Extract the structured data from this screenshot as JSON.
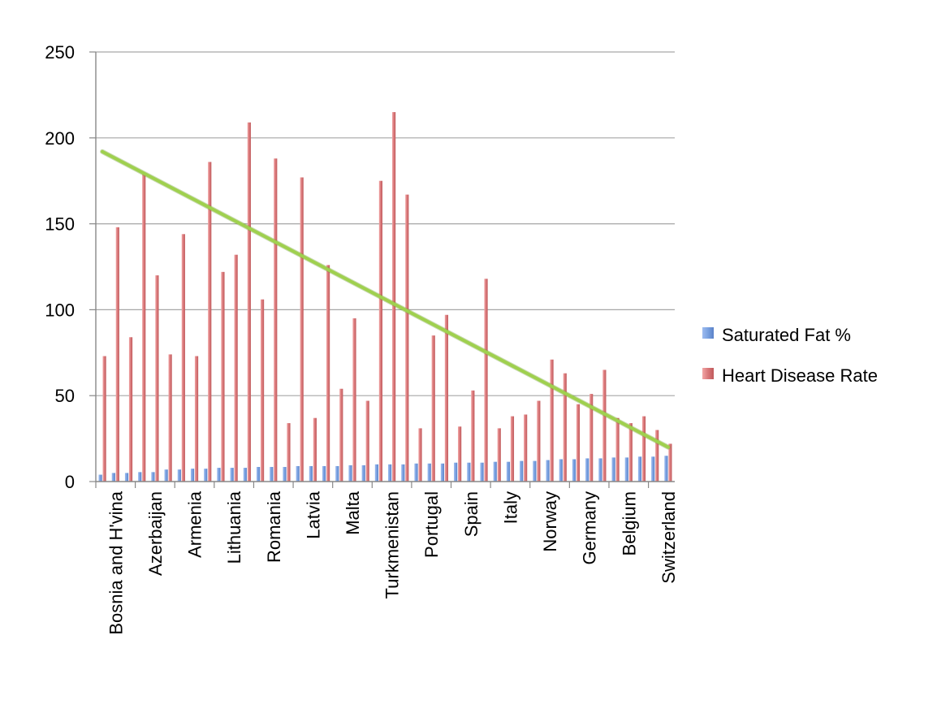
{
  "chart_data": {
    "type": "bar",
    "title": "",
    "xlabel": "",
    "ylabel": "",
    "ylim": [
      0,
      250
    ],
    "yticks": [
      "0",
      "50",
      "100",
      "150",
      "200",
      "250"
    ],
    "grid": true,
    "legend_position": "right",
    "category_count": 44,
    "labeled_categories": [
      {
        "index": 1,
        "label": "Bosnia and H'vina"
      },
      {
        "index": 4,
        "label": "Azerbaijan"
      },
      {
        "index": 7,
        "label": "Armenia"
      },
      {
        "index": 10,
        "label": "Lithuania"
      },
      {
        "index": 13,
        "label": "Romania"
      },
      {
        "index": 16,
        "label": "Latvia"
      },
      {
        "index": 19,
        "label": "Malta"
      },
      {
        "index": 22,
        "label": "Turkmenistan"
      },
      {
        "index": 25,
        "label": "Portugal"
      },
      {
        "index": 28,
        "label": "Spain"
      },
      {
        "index": 31,
        "label": "Italy"
      },
      {
        "index": 34,
        "label": "Norway"
      },
      {
        "index": 37,
        "label": "Germany"
      },
      {
        "index": 40,
        "label": "Belgium"
      },
      {
        "index": 43,
        "label": "Switzerland"
      }
    ],
    "series": [
      {
        "name": "Saturated Fat %",
        "color": "#7aa1e0",
        "values": [
          4,
          5,
          5,
          5.5,
          5.5,
          7,
          7,
          7.5,
          7.5,
          8,
          8,
          8,
          8.5,
          8.5,
          8.5,
          9,
          9,
          9,
          9,
          9.5,
          9.5,
          10,
          10,
          10,
          10.5,
          10.5,
          10.5,
          11,
          11,
          11,
          11.5,
          11.5,
          12,
          12,
          12.5,
          13,
          13,
          13.5,
          13.5,
          14,
          14,
          14.5,
          14.5,
          15
        ]
      },
      {
        "name": "Heart Disease Rate",
        "color": "#d9787a",
        "values": [
          73,
          148,
          84,
          179,
          120,
          74,
          144,
          73,
          186,
          122,
          132,
          209,
          106,
          188,
          34,
          177,
          37,
          126,
          54,
          95,
          47,
          175,
          215,
          167,
          31,
          85,
          97,
          32,
          53,
          118,
          31,
          38,
          39,
          47,
          71,
          63,
          45,
          51,
          65,
          37,
          34,
          38,
          30,
          22
        ]
      }
    ],
    "trendline": {
      "series": "Heart Disease Rate",
      "color": "#9fd04e",
      "start_value": 192,
      "end_value": 20
    }
  }
}
